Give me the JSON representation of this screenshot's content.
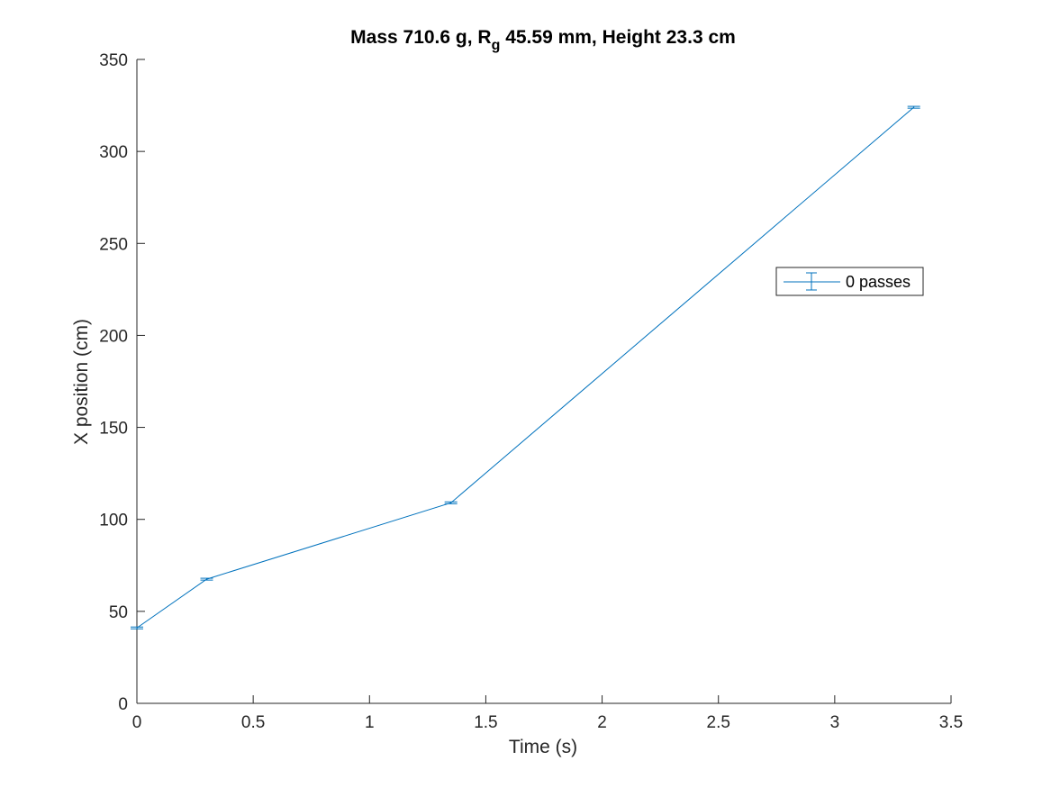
{
  "chart_data": {
    "type": "line",
    "title": {
      "prefix": "Mass 710.6 g, R",
      "subscript": "g",
      "suffix": " 45.59 mm,  Height 23.3 cm"
    },
    "xlabel": "Time (s)",
    "ylabel": "X position (cm)",
    "xlim": [
      0,
      3.5
    ],
    "ylim": [
      0,
      350
    ],
    "xticks": [
      0,
      0.5,
      1,
      1.5,
      2,
      2.5,
      3,
      3.5
    ],
    "xtick_labels": [
      "0",
      "0.5",
      "1",
      "1.5",
      "2",
      "2.5",
      "3",
      "3.5"
    ],
    "yticks": [
      0,
      50,
      100,
      150,
      200,
      250,
      300,
      350
    ],
    "ytick_labels": [
      "0",
      "50",
      "100",
      "150",
      "200",
      "250",
      "300",
      "350"
    ],
    "grid": false,
    "legend_placement": "right",
    "series": [
      {
        "name": "0 passes",
        "color": "#0072BD",
        "x": [
          0,
          0.3,
          1.35,
          3.34
        ],
        "y": [
          41,
          67.5,
          109,
          324
        ],
        "error": [
          0.5,
          0.5,
          0.5,
          0.5
        ]
      }
    ]
  }
}
